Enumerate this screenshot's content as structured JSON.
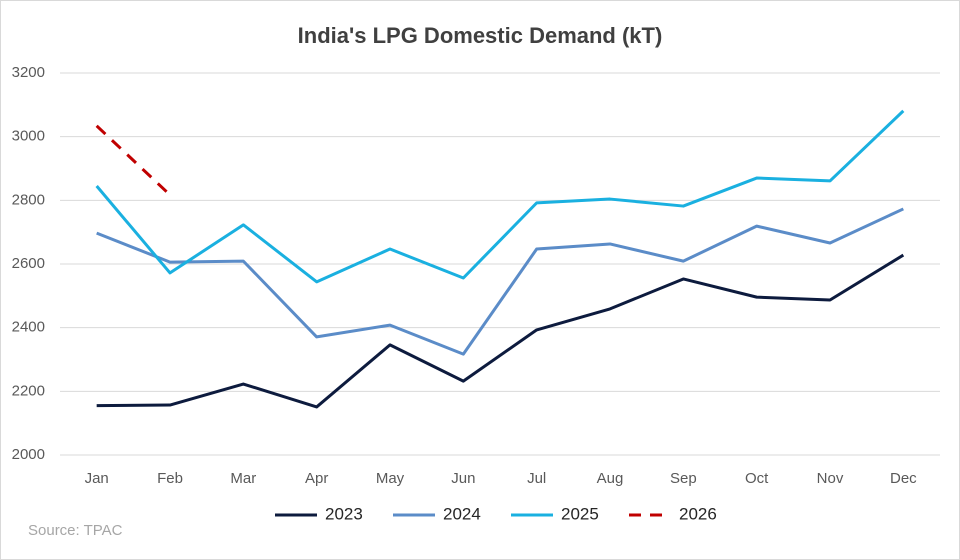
{
  "chart_data": {
    "type": "line",
    "title": "India's LPG Domestic Demand (kT)",
    "source": "Source: TPAC",
    "categories": [
      "Jan",
      "Feb",
      "Mar",
      "Apr",
      "May",
      "Jun",
      "Jul",
      "Aug",
      "Sep",
      "Oct",
      "Nov",
      "Dec"
    ],
    "series": [
      {
        "name": "2023",
        "color": "#0d1b3e",
        "dashed": false,
        "values": [
          2155,
          2157,
          2223,
          2151,
          2346,
          2232,
          2393,
          2459,
          2553,
          2496,
          2487,
          2628
        ]
      },
      {
        "name": "2024",
        "color": "#5b8cc8",
        "dashed": false,
        "values": [
          2697,
          2606,
          2609,
          2371,
          2408,
          2317,
          2647,
          2663,
          2609,
          2719,
          2666,
          2773
        ]
      },
      {
        "name": "2025",
        "color": "#1ab0e0",
        "dashed": false,
        "values": [
          2845,
          2572,
          2723,
          2544,
          2647,
          2556,
          2792,
          2804,
          2782,
          2870,
          2861,
          3081
        ]
      },
      {
        "name": "2026",
        "color": "#c00000",
        "dashed": true,
        "values": [
          3034,
          2817,
          null,
          null,
          null,
          null,
          null,
          null,
          null,
          null,
          null,
          null
        ]
      }
    ],
    "ylim": [
      2000,
      3200
    ],
    "yticks": [
      2000,
      2200,
      2400,
      2600,
      2800,
      3000,
      3200
    ],
    "grid": true,
    "legend": "bottom"
  }
}
